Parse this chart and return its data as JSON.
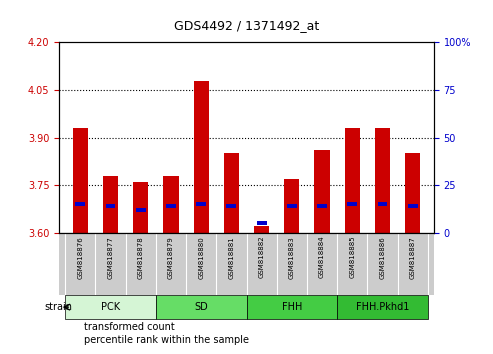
{
  "title": "GDS4492 / 1371492_at",
  "samples": [
    "GSM818876",
    "GSM818877",
    "GSM818878",
    "GSM818879",
    "GSM818880",
    "GSM818881",
    "GSM818882",
    "GSM818883",
    "GSM818884",
    "GSM818885",
    "GSM818886",
    "GSM818887"
  ],
  "transformed_count": [
    3.93,
    3.78,
    3.76,
    3.78,
    4.08,
    3.85,
    3.62,
    3.77,
    3.86,
    3.93,
    3.93,
    3.85
  ],
  "percentile_rank": [
    15,
    14,
    12,
    14,
    15,
    14,
    5,
    14,
    14,
    15,
    15,
    14
  ],
  "ylim_left": [
    3.6,
    4.2
  ],
  "ylim_right": [
    0,
    100
  ],
  "yticks_left": [
    3.6,
    3.75,
    3.9,
    4.05,
    4.2
  ],
  "yticks_right": [
    0,
    25,
    50,
    75,
    100
  ],
  "hlines": [
    3.75,
    3.9,
    4.05
  ],
  "groups": [
    {
      "label": "PCK",
      "indices": [
        0,
        1,
        2
      ],
      "color": "#d5f5d5"
    },
    {
      "label": "SD",
      "indices": [
        3,
        4,
        5
      ],
      "color": "#66dd66"
    },
    {
      "label": "FHH",
      "indices": [
        6,
        7,
        8
      ],
      "color": "#44cc44"
    },
    {
      "label": "FHH.Pkhd1",
      "indices": [
        9,
        10,
        11
      ],
      "color": "#33bb33"
    }
  ],
  "bar_color_red": "#cc0000",
  "bar_color_blue": "#0000cc",
  "bar_width": 0.5,
  "legend_labels": [
    "transformed count",
    "percentile rank within the sample"
  ],
  "legend_colors": [
    "#cc0000",
    "#0000cc"
  ],
  "tick_label_color_left": "#cc0000",
  "tick_label_color_right": "#0000cc",
  "xtick_bg_color": "#cccccc",
  "strain_label": "strain",
  "right_tick_labels": [
    "0",
    "25",
    "50",
    "75",
    "100%"
  ]
}
